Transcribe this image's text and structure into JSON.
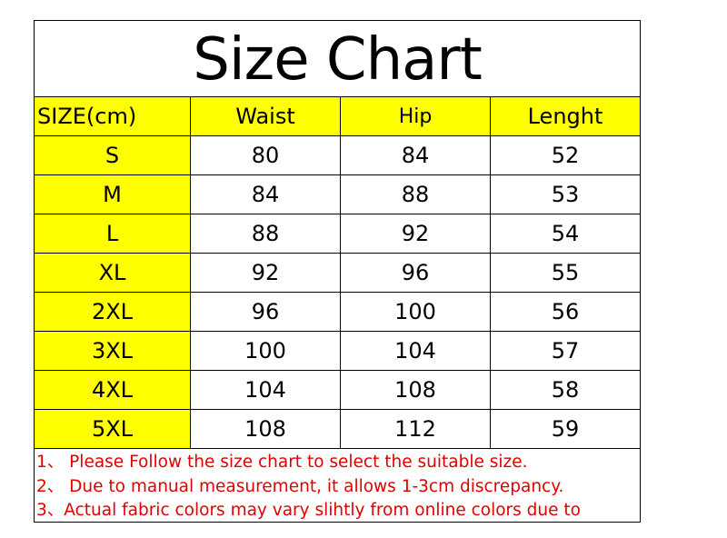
{
  "title": "Size Chart",
  "headers": [
    "SIZE(cm)",
    "Waist",
    "Hip",
    "Lenght"
  ],
  "rows": [
    [
      "S",
      "80",
      "84",
      "52"
    ],
    [
      "M",
      "84",
      "88",
      "53"
    ],
    [
      "L",
      "88",
      "92",
      "54"
    ],
    [
      "XL",
      "92",
      "96",
      "55"
    ],
    [
      "2XL",
      "96",
      "100",
      "56"
    ],
    [
      "3XL",
      "100",
      "104",
      "57"
    ],
    [
      "4XL",
      "104",
      "108",
      "58"
    ],
    [
      "5XL",
      "108",
      "112",
      "59"
    ]
  ],
  "notes": [
    "1、 Please Follow the size chart to select the suitable size.",
    "2、 Due to manual measurement, it allows 1-3cm discrepancy.",
    "3、Actual fabric colors may vary slihtly from online colors due to"
  ],
  "colors": {
    "header_bg": "#ffff00",
    "note_text": "#e00000"
  }
}
